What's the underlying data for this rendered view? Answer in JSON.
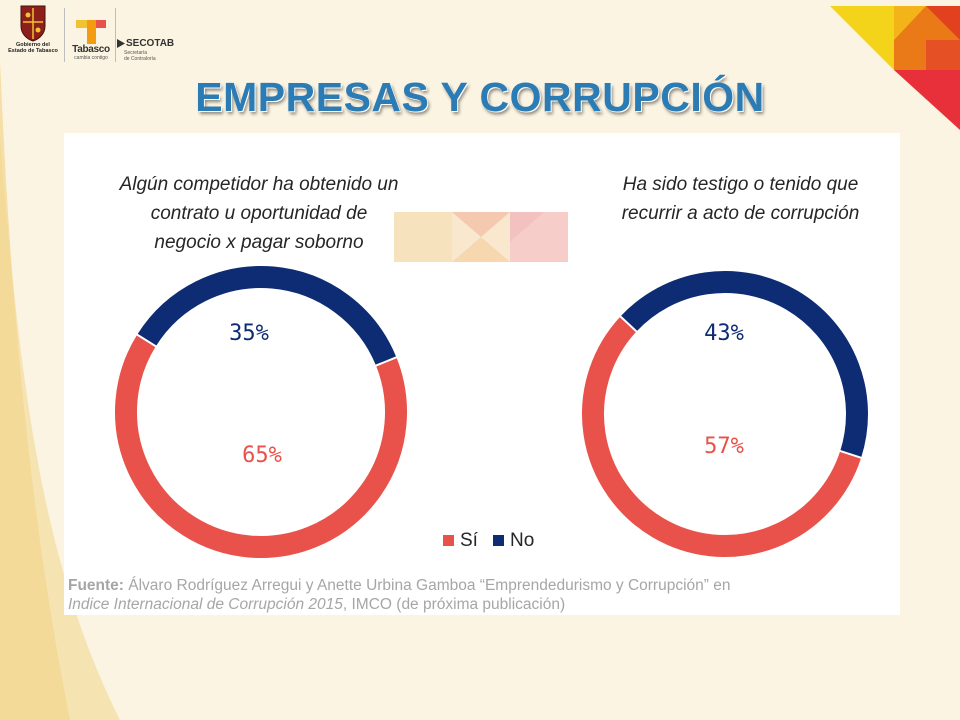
{
  "header": {
    "gob_line1": "Gobierno del",
    "gob_line2": "Estado de Tabasco",
    "tabasco_name": "Tabasco",
    "tabasco_slogan": "cambia contigo",
    "secotab_name": "SECOTAB",
    "secotab_sub1": "Secretaría",
    "secotab_sub2": "de Contraloría"
  },
  "title": "EMPRESAS Y CORRUPCIÓN",
  "legend": {
    "si": "Sí",
    "no": "No"
  },
  "source": {
    "label": "Fuente:",
    "line1": " Álvaro Rodríguez Arregui y Anette Urbina Gamboa “Emprendedurismo y Corrupción” en",
    "line2_italic": "Indice Internacional de Corrupción 2015",
    "line2_rest": ", IMCO (de próxima publicación)"
  },
  "colors": {
    "si": "#e8524a",
    "no": "#0e2c74",
    "title": "#2b7bb5"
  },
  "chart_data": [
    {
      "type": "pie",
      "question": "Algún competidor ha obtenido un contrato u oportunidad de negocio x pagar soborno",
      "question_lines": [
        "Algún competidor ha obtenido un",
        "contrato u oportunidad de",
        "negocio x pagar soborno"
      ],
      "series": [
        {
          "name": "Sí",
          "value": 65,
          "label": "65%"
        },
        {
          "name": "No",
          "value": 35,
          "label": "35%"
        }
      ]
    },
    {
      "type": "pie",
      "question": "Ha sido testigo o tenido que recurrir a acto de corrupción",
      "question_lines": [
        "Ha sido testigo o tenido que",
        "recurrir a acto de corrupción"
      ],
      "series": [
        {
          "name": "Sí",
          "value": 57,
          "label": "57%"
        },
        {
          "name": "No",
          "value": 43,
          "label": "43%"
        }
      ]
    }
  ]
}
